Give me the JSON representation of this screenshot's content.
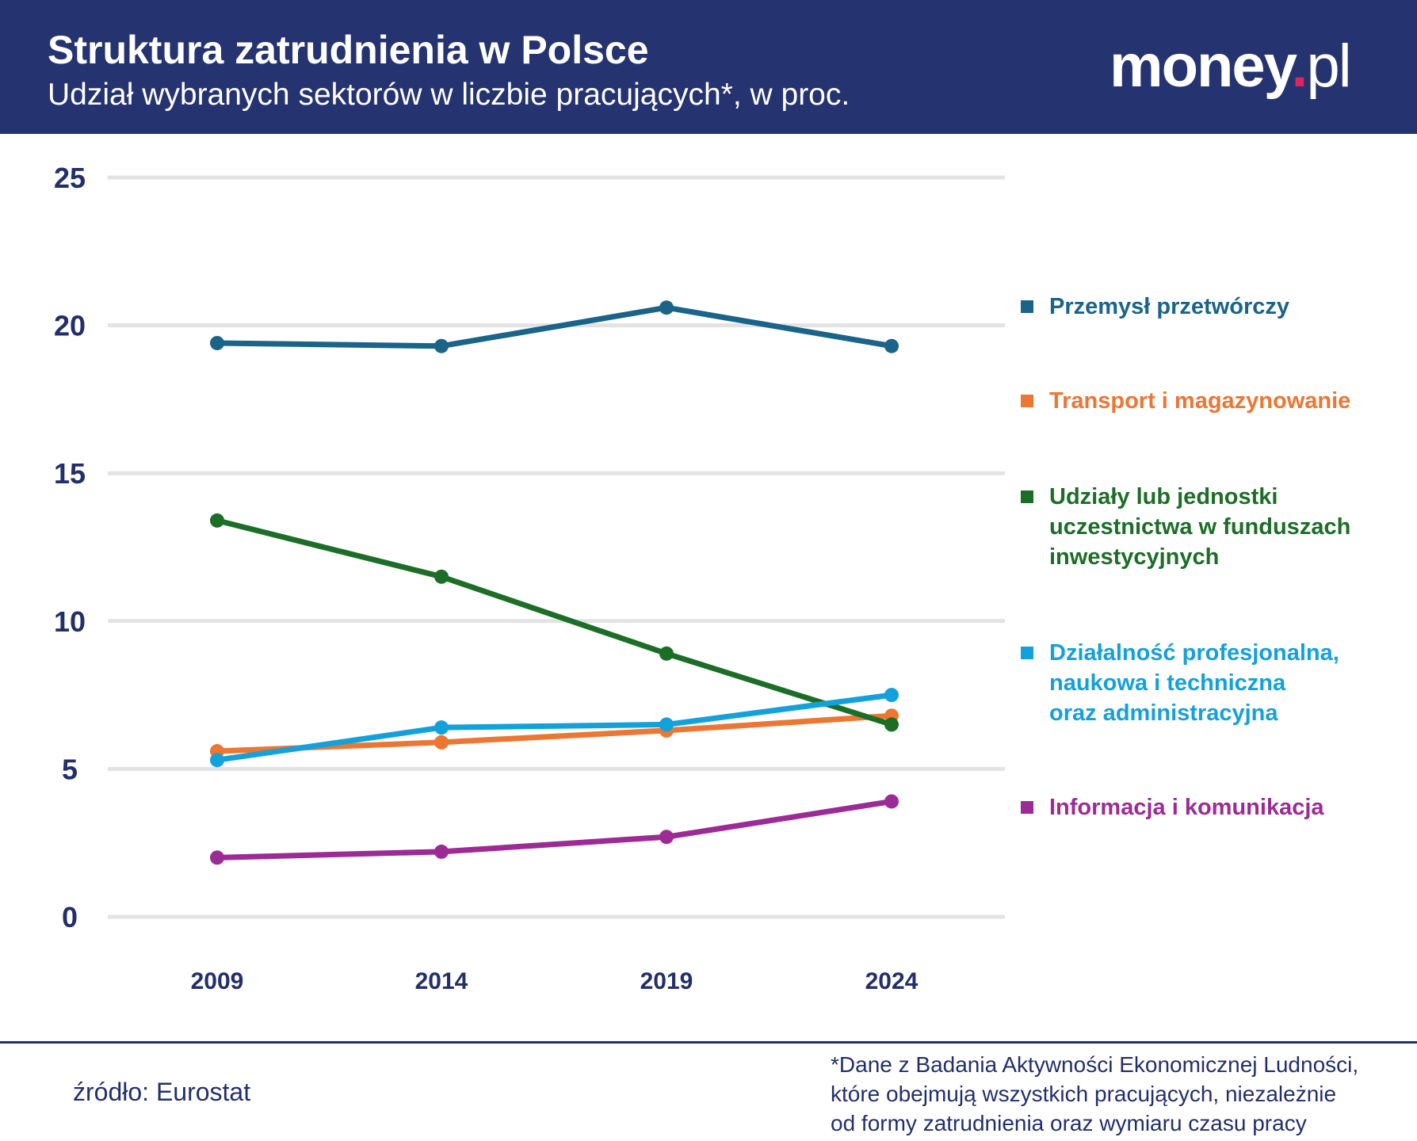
{
  "header": {
    "title": "Struktura zatrudnienia w Polsce",
    "subtitle": "Udział wybranych sektorów w liczbie pracujących*, w proc.",
    "logo": "money.pl"
  },
  "chart_data": {
    "type": "line",
    "title": "Struktura zatrudnienia w Polsce",
    "subtitle": "Udział wybranych sektorów w liczbie pracujących*, w proc.",
    "x": [
      "2009",
      "2014",
      "2019",
      "2024"
    ],
    "ylim": [
      0,
      25
    ],
    "yticks": [
      0,
      5,
      10,
      15,
      20,
      25
    ],
    "grid": true,
    "legend_placement": "right",
    "series": [
      {
        "name": "Przemysł przetwórczy",
        "color": "#1a6389",
        "values": [
          19.4,
          19.3,
          20.6,
          19.3
        ]
      },
      {
        "name": "Transport i magazynowanie",
        "color": "#ec7632",
        "values": [
          5.6,
          5.9,
          6.3,
          6.8
        ]
      },
      {
        "name": "Udziały lub jednostki uczestnictwa w funduszach inwestycyjnych",
        "color": "#1c6e27",
        "values": [
          13.4,
          11.5,
          8.9,
          6.5
        ]
      },
      {
        "name": "Działalność profesjonalna, naukowa i techniczna oraz administracyjna",
        "color": "#13a1db",
        "values": [
          5.3,
          6.4,
          6.5,
          7.5
        ]
      },
      {
        "name": "Informacja i komunikacja",
        "color": "#9c2b95",
        "values": [
          2.0,
          2.2,
          2.7,
          3.9
        ]
      }
    ]
  },
  "legend": [
    {
      "lines": [
        "Przemysł przetwórczy"
      ],
      "color": "#1a6389"
    },
    {
      "lines": [
        "Transport i magazynowanie"
      ],
      "color": "#ec7632"
    },
    {
      "lines": [
        "Udziały lub jednostki",
        "uczestnictwa w funduszach",
        "inwestycyjnych"
      ],
      "color": "#1c6e27"
    },
    {
      "lines": [
        "Działalność profesjonalna,",
        "naukowa i techniczna",
        "oraz administracyjna"
      ],
      "color": "#13a1db"
    },
    {
      "lines": [
        "Informacja i komunikacja"
      ],
      "color": "#9c2b95"
    }
  ],
  "footer": {
    "source": "źródło: Eurostat",
    "note": [
      "*Dane z Badania Aktywności Ekonomicznej Ludności,",
      "które obejmują wszystkich pracujących, niezależnie",
      "od formy zatrudnienia oraz wymiaru czasu pracy"
    ]
  }
}
